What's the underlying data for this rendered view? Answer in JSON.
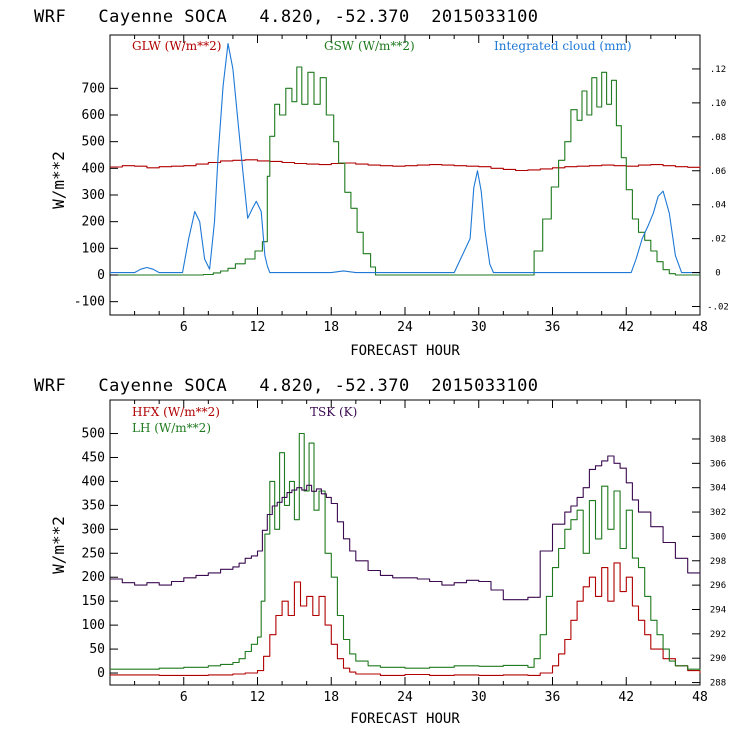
{
  "chart_data": [
    {
      "type": "line",
      "title": "WRF   Cayenne SOCA   4.820, -52.370  2015033100",
      "xlabel": "FORECAST HOUR",
      "ylabel": "W/m**2",
      "xlim": [
        0,
        48
      ],
      "ylim": [
        -150,
        900
      ],
      "y2lim": [
        -0.025,
        0.14
      ],
      "xticks": [
        "6",
        "12",
        "18",
        "24",
        "30",
        "36",
        "42",
        "48"
      ],
      "yticks": [
        "-100",
        "0",
        "100",
        "200",
        "300",
        "400",
        "500",
        "600",
        "700"
      ],
      "y2ticks": [
        "-.02",
        "0",
        ".02",
        ".04",
        ".06",
        ".08",
        ".10",
        ".12"
      ],
      "series": [
        {
          "name": "GLW (W/m**2)",
          "axis": "left",
          "color": "#b00000",
          "step": true,
          "x": [
            0,
            1,
            2,
            3,
            4,
            5,
            6,
            7,
            8,
            9,
            10,
            11,
            12,
            13,
            14,
            15,
            16,
            17,
            18,
            19,
            20,
            21,
            22,
            23,
            24,
            25,
            26,
            27,
            28,
            29,
            30,
            31,
            32,
            33,
            34,
            35,
            36,
            37,
            38,
            39,
            40,
            41,
            42,
            43,
            44,
            45,
            46,
            47,
            48
          ],
          "y": [
            405,
            410,
            408,
            402,
            406,
            408,
            410,
            416,
            422,
            428,
            430,
            432,
            428,
            426,
            422,
            418,
            416,
            414,
            418,
            420,
            416,
            412,
            410,
            408,
            410,
            412,
            414,
            412,
            410,
            408,
            406,
            400,
            396,
            392,
            394,
            398,
            402,
            406,
            408,
            410,
            412,
            410,
            408,
            412,
            414,
            410,
            406,
            404,
            408
          ]
        },
        {
          "name": "GSW (W/m**2)",
          "axis": "left",
          "color": "#1e7a1e",
          "step": true,
          "x": [
            0,
            6.9,
            7.6,
            8.4,
            9,
            9.6,
            10.2,
            11,
            11.8,
            12.4,
            12.8,
            13,
            13.4,
            13.8,
            14.3,
            14.8,
            15.2,
            15.6,
            16.1,
            16.6,
            17.1,
            17.6,
            18.2,
            18.6,
            19.1,
            19.6,
            20.1,
            20.6,
            21.2,
            21.6,
            33.8,
            34.5,
            35.2,
            35.9,
            36.5,
            37,
            37.5,
            38,
            38.4,
            38.8,
            39.2,
            39.6,
            40,
            40.4,
            40.8,
            41.2,
            41.6,
            42,
            42.5,
            43,
            43.5,
            44,
            44.5,
            45,
            45.5,
            46,
            46.5,
            48
          ],
          "y": [
            0,
            0,
            2,
            8,
            15,
            25,
            42,
            60,
            90,
            125,
            370,
            520,
            640,
            600,
            700,
            650,
            780,
            640,
            760,
            640,
            740,
            600,
            500,
            420,
            310,
            250,
            160,
            80,
            30,
            0,
            0,
            90,
            210,
            330,
            430,
            500,
            620,
            580,
            690,
            600,
            740,
            630,
            760,
            640,
            730,
            560,
            440,
            320,
            210,
            160,
            130,
            90,
            50,
            20,
            5,
            0,
            0,
            0
          ]
        },
        {
          "name": "Integrated cloud (mm)",
          "axis": "right",
          "color": "#1e78d6",
          "smooth": true,
          "x": [
            0,
            2,
            2.5,
            3,
            3.5,
            4,
            5.9,
            6.4,
            6.9,
            7.3,
            7.7,
            8.1,
            8.5,
            8.8,
            9.2,
            9.6,
            10,
            10.4,
            10.8,
            11.2,
            11.6,
            11.9,
            12.3,
            12.6,
            12.8,
            13,
            16,
            18,
            19,
            20,
            28,
            29.3,
            29.6,
            29.9,
            30.2,
            30.5,
            30.9,
            31.2,
            31.5,
            42.4,
            42.8,
            43.3,
            43.8,
            44.2,
            44.6,
            45,
            45.5,
            46,
            46.5,
            48
          ],
          "y": [
            0,
            0,
            0.002,
            0.003,
            0.002,
            0,
            0,
            0.02,
            0.036,
            0.03,
            0.008,
            0.002,
            0.03,
            0.07,
            0.11,
            0.135,
            0.12,
            0.09,
            0.06,
            0.032,
            0.038,
            0.042,
            0.036,
            0.01,
            0.004,
            0,
            0,
            0,
            0.001,
            0,
            0,
            0.02,
            0.05,
            0.06,
            0.048,
            0.025,
            0.005,
            0,
            0,
            0,
            0.008,
            0.02,
            0.028,
            0.035,
            0.045,
            0.048,
            0.035,
            0.01,
            0,
            0
          ]
        }
      ],
      "legend": "top"
    },
    {
      "type": "line",
      "title": "WRF   Cayenne SOCA   4.820, -52.370  2015033100",
      "xlabel": "FORECAST HOUR",
      "ylabel": "W/m**2",
      "xlim": [
        0,
        48
      ],
      "ylim": [
        -25,
        570
      ],
      "y2lim": [
        287.8,
        311.2
      ],
      "xticks": [
        "6",
        "12",
        "18",
        "24",
        "30",
        "36",
        "42",
        "48"
      ],
      "yticks": [
        "0",
        "50",
        "100",
        "150",
        "200",
        "250",
        "300",
        "350",
        "400",
        "450",
        "500"
      ],
      "y2ticks": [
        "288",
        "290",
        "292",
        "294",
        "296",
        "298",
        "300",
        "302",
        "304",
        "306",
        "308"
      ],
      "series": [
        {
          "name": "HFX (W/m**2)",
          "axis": "left",
          "color": "#b00000",
          "step": true,
          "x": [
            0,
            4,
            8,
            10,
            11,
            12,
            12.5,
            13,
            13.5,
            14,
            14.5,
            15,
            15.5,
            16,
            16.5,
            17,
            17.5,
            18,
            18.5,
            19,
            19.5,
            20,
            22,
            24,
            26,
            28,
            30,
            32,
            34,
            35,
            36,
            36.5,
            37,
            37.5,
            38,
            38.5,
            39,
            39.5,
            40,
            40.5,
            41,
            41.5,
            42,
            42.5,
            43,
            43.5,
            44,
            45,
            46,
            47,
            48
          ],
          "y": [
            -4,
            -5,
            -4,
            -2,
            0,
            5,
            35,
            80,
            120,
            150,
            120,
            190,
            140,
            160,
            120,
            160,
            100,
            60,
            30,
            10,
            2,
            -2,
            -5,
            -3,
            -5,
            -4,
            -5,
            -4,
            -5,
            0,
            15,
            40,
            70,
            110,
            150,
            180,
            200,
            160,
            220,
            150,
            230,
            170,
            200,
            140,
            110,
            80,
            50,
            30,
            15,
            5,
            0
          ]
        },
        {
          "name": "LH (W/m**2)",
          "axis": "left",
          "color": "#1e7a1e",
          "step": true,
          "x": [
            0,
            4,
            6,
            8,
            9,
            10,
            10.5,
            11,
            11.5,
            12,
            12.3,
            12.6,
            13,
            13.4,
            13.8,
            14.2,
            14.6,
            15,
            15.4,
            15.8,
            16.2,
            16.6,
            17,
            17.5,
            18,
            18.5,
            19,
            19.5,
            20,
            21,
            22,
            24,
            26,
            28,
            30,
            32,
            34,
            34.5,
            35,
            35.5,
            36,
            36.5,
            37,
            37.5,
            38,
            38.5,
            39,
            39.5,
            40,
            40.5,
            41,
            41.5,
            42,
            42.5,
            43,
            43.5,
            44,
            44.5,
            45,
            45.5,
            46,
            47,
            48
          ],
          "y": [
            8,
            10,
            12,
            15,
            18,
            22,
            30,
            45,
            60,
            75,
            150,
            290,
            400,
            300,
            460,
            350,
            400,
            320,
            500,
            380,
            480,
            340,
            380,
            250,
            200,
            120,
            70,
            40,
            25,
            15,
            12,
            10,
            12,
            15,
            14,
            16,
            12,
            30,
            80,
            160,
            220,
            260,
            300,
            320,
            340,
            250,
            360,
            280,
            390,
            300,
            380,
            260,
            340,
            240,
            220,
            160,
            110,
            80,
            50,
            25,
            15,
            8,
            5
          ]
        },
        {
          "name": "TSK (K)",
          "axis": "right",
          "color": "#3a0a50",
          "step": true,
          "x": [
            0,
            1,
            2,
            3,
            4,
            5,
            6,
            7,
            8,
            9,
            10,
            10.5,
            11,
            11.5,
            12,
            12.4,
            12.8,
            13.2,
            13.6,
            14,
            14.4,
            14.8,
            15.2,
            15.6,
            16,
            16.4,
            16.8,
            17.2,
            17.6,
            18,
            18.5,
            19,
            19.5,
            20,
            21,
            22,
            23,
            24,
            25,
            26,
            27,
            28,
            29,
            30,
            31,
            32,
            33,
            34,
            35,
            36,
            37,
            37.5,
            38,
            38.5,
            39,
            39.5,
            40,
            40.5,
            41,
            41.5,
            42,
            42.5,
            43,
            44,
            45,
            46,
            47,
            48
          ],
          "y": [
            296.5,
            296.2,
            296.0,
            296.2,
            296.0,
            296.3,
            296.6,
            296.8,
            297.0,
            297.3,
            297.5,
            297.8,
            298.2,
            298.4,
            298.8,
            300.5,
            301.8,
            302.5,
            302.8,
            303.2,
            303.6,
            303.8,
            304.0,
            303.8,
            304.2,
            303.7,
            303.9,
            303.5,
            303.2,
            302.7,
            301.2,
            299.8,
            298.8,
            298.0,
            297.2,
            296.8,
            296.6,
            296.6,
            296.5,
            296.3,
            296.0,
            296.2,
            296.4,
            296.3,
            295.6,
            294.8,
            294.8,
            295.0,
            298.8,
            301.0,
            302.0,
            302.5,
            303.2,
            304.0,
            305.5,
            305.8,
            306.2,
            306.6,
            306.0,
            305.6,
            304.4,
            303.0,
            302.0,
            300.8,
            299.5,
            298.2,
            297.0,
            296.9
          ]
        }
      ],
      "legend": "top"
    }
  ]
}
